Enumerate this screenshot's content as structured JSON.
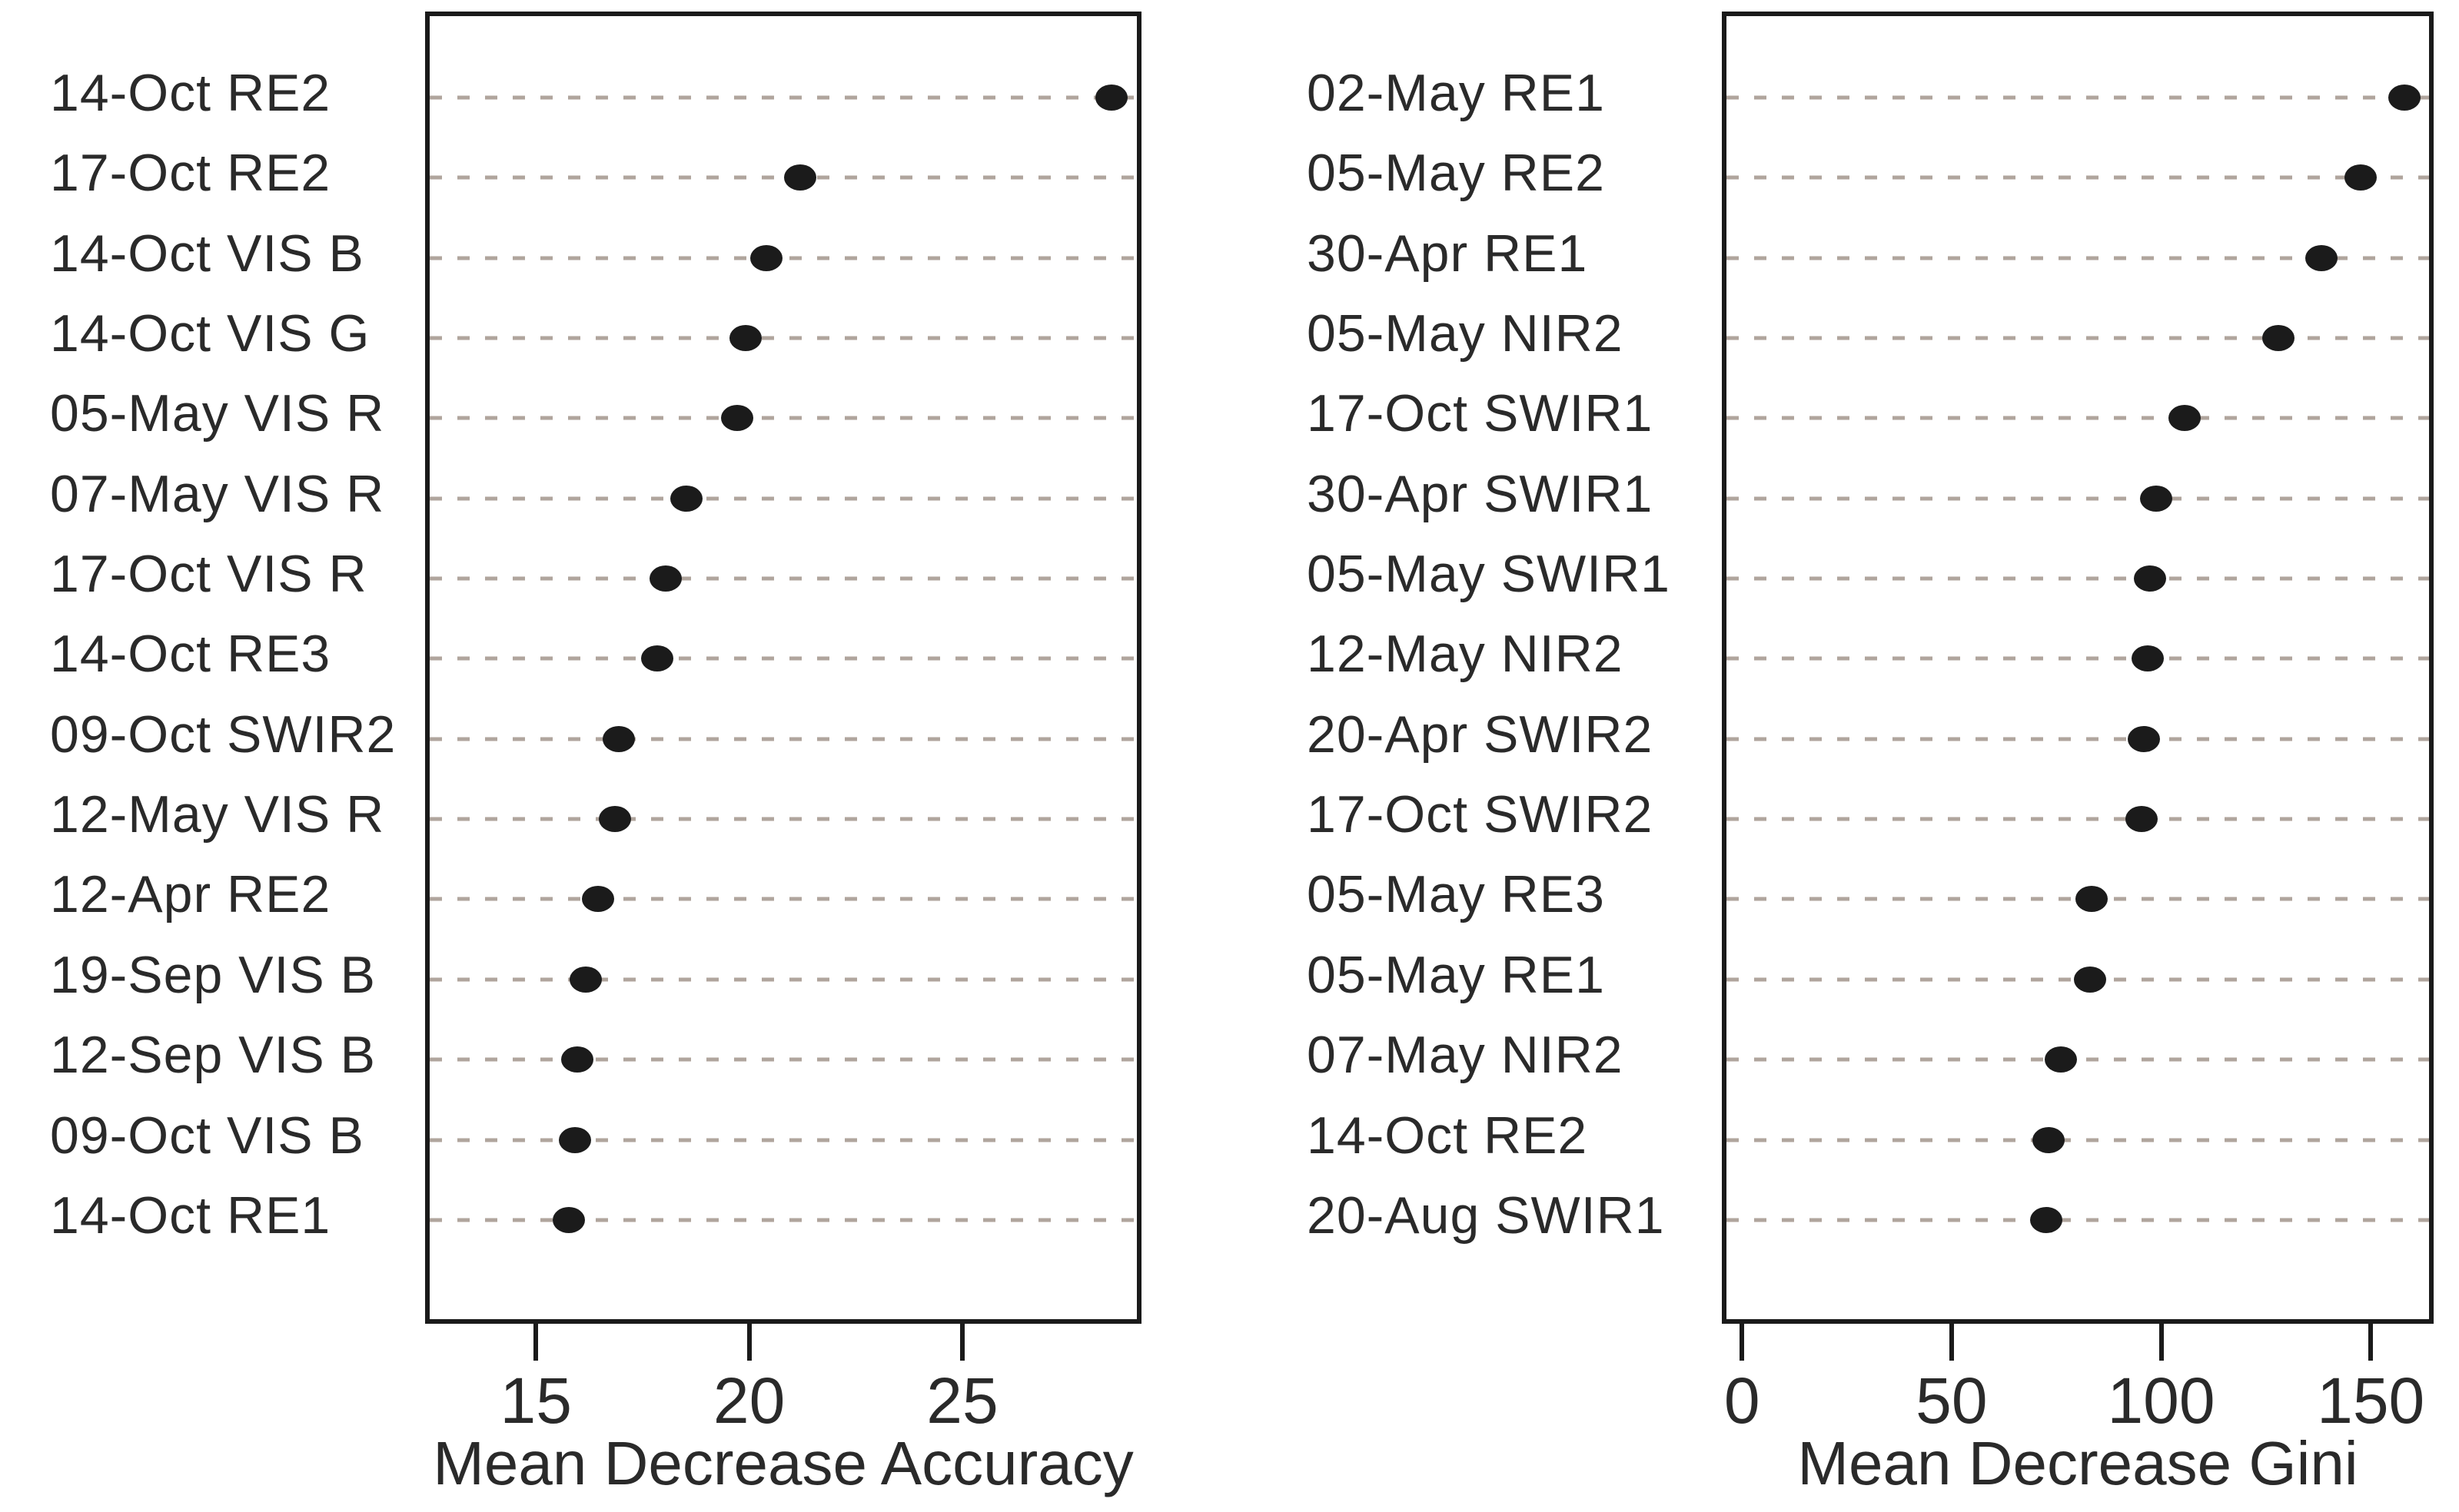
{
  "figure": {
    "background_color": "#ffffff",
    "text_color": "#2a2a2a",
    "dot_color": "#1b1b1b",
    "gridline_color": "#b0a59d",
    "box_border_color": "#1a1a1a"
  },
  "chart_data": [
    {
      "type": "scatter",
      "variant": "dot-chart-horizontal",
      "title": "",
      "xlabel": "Mean Decrease Accuracy",
      "ylabel": "",
      "legend": "none",
      "grid": "dashed-horizontal",
      "xlim": [
        12.4,
        29.2
      ],
      "x_ticks": [
        15,
        20,
        25
      ],
      "x_tick_labels": [
        "15",
        "20",
        "25"
      ],
      "categories": [
        "14-Oct RE2",
        "17-Oct RE2",
        "14-Oct VIS B",
        "14-Oct VIS G",
        "05-May VIS R",
        "07-May VIS R",
        "17-Oct VIS R",
        "14-Oct RE3",
        "09-Oct SWIR2",
        "12-May VIS R",
        "12-Apr RE2",
        "19-Sep VIS B",
        "12-Sep VIS B",
        "09-Oct VIS B",
        "14-Oct RE1"
      ],
      "values": [
        28.6,
        21.2,
        20.4,
        19.9,
        19.7,
        18.5,
        18.0,
        17.8,
        16.9,
        16.8,
        16.4,
        16.1,
        15.9,
        15.85,
        15.7
      ]
    },
    {
      "type": "scatter",
      "variant": "dot-chart-horizontal",
      "title": "",
      "xlabel": "Mean Decrease Gini",
      "ylabel": "",
      "legend": "none",
      "grid": "dashed-horizontal",
      "xlim": [
        -4.8,
        165
      ],
      "x_ticks": [
        0,
        50,
        100,
        150
      ],
      "x_tick_labels": [
        "0",
        "50",
        "100",
        "150"
      ],
      "categories": [
        "02-May RE1",
        "05-May RE2",
        "30-Apr RE1",
        "05-May NIR2",
        "17-Oct SWIR1",
        "30-Apr SWIR1",
        "05-May SWIR1",
        "12-May NIR2",
        "20-Apr SWIR2",
        "17-Oct SWIR2",
        "05-May RE3",
        "05-May RE1",
        "07-May NIR2",
        "14-Oct RE2",
        "20-Aug SWIR1"
      ],
      "values": [
        159,
        148.5,
        139,
        128.5,
        106,
        99,
        97.5,
        97,
        96,
        95.5,
        83.5,
        83,
        76,
        73,
        72.5
      ]
    }
  ]
}
